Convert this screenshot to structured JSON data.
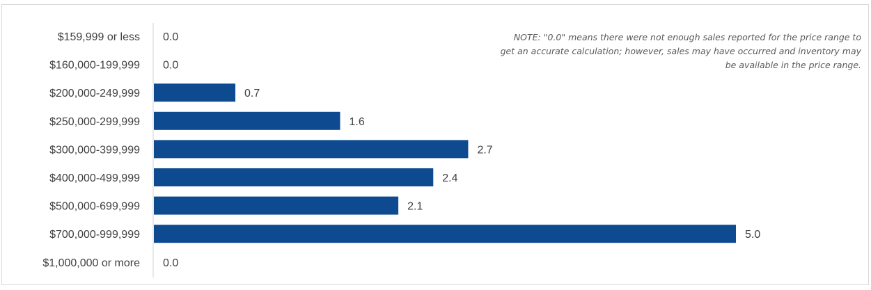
{
  "chart_data": {
    "type": "bar",
    "orientation": "horizontal",
    "title": "",
    "xlabel": "",
    "ylabel": "",
    "categories": [
      "$159,999 or less",
      "$160,000-199,999",
      "$200,000-249,999",
      "$250,000-299,999",
      "$300,000-399,999",
      "$400,000-499,999",
      "$500,000-699,999",
      "$700,000-999,999",
      "$1,000,000 or more"
    ],
    "values": [
      0.0,
      0.0,
      0.7,
      1.6,
      2.7,
      2.4,
      2.1,
      5.0,
      0.0
    ],
    "value_labels": [
      "0.0",
      "0.0",
      "0.7",
      "1.6",
      "2.7",
      "2.4",
      "2.1",
      "5.0",
      "0.0"
    ],
    "xlim": [
      0,
      5.5
    ],
    "grid": false,
    "legend": "none",
    "bar_color": "#0e4a8f",
    "note": "NOTE: \"0.0\" means there were not enough sales reported for the price range to get an accurate calculation;  however, sales may have occurred and inventory may be available in the price range."
  }
}
